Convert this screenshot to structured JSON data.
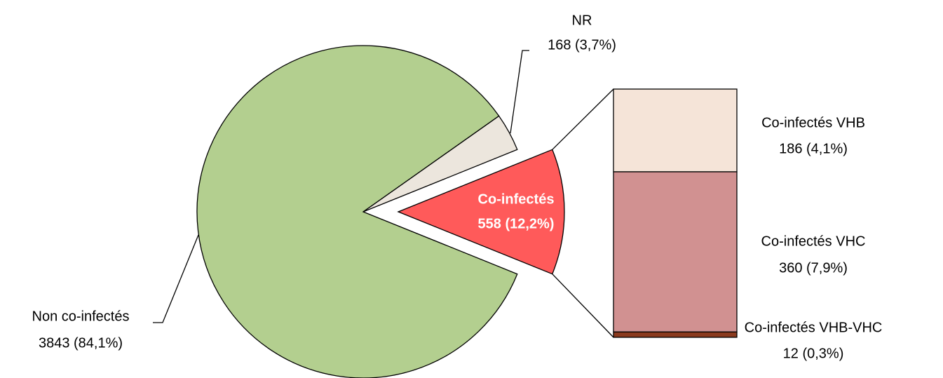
{
  "chart_data": {
    "type": "pie",
    "categories": [
      "Co-infectés",
      "Non co-infectés",
      "NR"
    ],
    "values": [
      558,
      3843,
      168
    ],
    "value_labels": [
      "558 (12,2%)",
      "3843 (84,1%)",
      "168 (3,7%)"
    ],
    "colors": [
      "#ff5a5a",
      "#b3cf8f",
      "#ece6dd"
    ],
    "breakdown": {
      "categories": [
        "Co-infectés VHB",
        "Co-infectés VHC",
        "Co-infectés VHB-VHC"
      ],
      "values": [
        186,
        360,
        12
      ],
      "value_labels": [
        "186 (4,1%)",
        "360 (7,9%)",
        "12 (0,3%)"
      ],
      "colors": [
        "#f5e4d8",
        "#d19191",
        "#8b3a1e"
      ]
    }
  }
}
